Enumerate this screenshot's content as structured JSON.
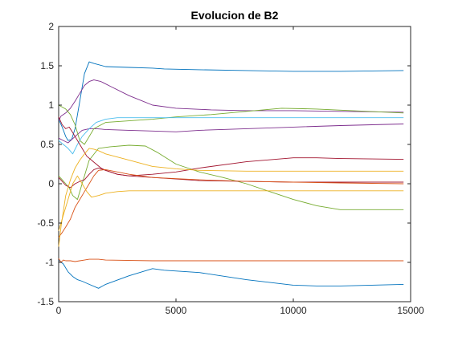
{
  "chart_data": {
    "type": "line",
    "title": "Evolucion de B2",
    "xlabel": "",
    "ylabel": "",
    "xlim": [
      0,
      15000
    ],
    "ylim": [
      -1.5,
      2
    ],
    "xticks": [
      0,
      5000,
      10000,
      15000
    ],
    "xtick_labels": [
      "0",
      "5000",
      "10000",
      "15000"
    ],
    "yticks": [
      -1.5,
      -1,
      -0.5,
      0,
      0.5,
      1,
      1.5,
      2
    ],
    "ytick_labels": [
      "-1.5",
      "-1",
      "-0.5",
      "0",
      "0.5",
      "1",
      "1.5",
      "2"
    ],
    "grid": false,
    "legend": "none",
    "series": [
      {
        "color": "#0072BD",
        "x": [
          0,
          150,
          300,
          400,
          550,
          700,
          900,
          1100,
          1300,
          1500,
          2000,
          3000,
          4000,
          4500,
          6000,
          8000,
          10000,
          12000,
          14700
        ],
        "y": [
          0.82,
          0.72,
          0.6,
          0.55,
          0.56,
          0.7,
          1.05,
          1.4,
          1.55,
          1.53,
          1.49,
          1.48,
          1.47,
          1.46,
          1.45,
          1.44,
          1.43,
          1.43,
          1.44
        ]
      },
      {
        "color": "#0072BD",
        "x": [
          0,
          200,
          400,
          600,
          800,
          1000,
          1300,
          1700,
          2000,
          3000,
          4000,
          4500,
          6000,
          8000,
          10000,
          11000,
          12000,
          14700
        ],
        "y": [
          -0.97,
          -1.02,
          -1.12,
          -1.18,
          -1.22,
          -1.24,
          -1.28,
          -1.33,
          -1.28,
          -1.17,
          -1.08,
          -1.1,
          -1.13,
          -1.22,
          -1.29,
          -1.3,
          -1.3,
          -1.28
        ]
      },
      {
        "color": "#7E2F8E",
        "x": [
          0,
          100,
          300,
          500,
          700,
          900,
          1100,
          1300,
          1500,
          1800,
          2200,
          3000,
          4000,
          5000,
          6500,
          8000,
          10000,
          12000,
          14700
        ],
        "y": [
          0.8,
          0.86,
          0.9,
          0.96,
          1.05,
          1.15,
          1.25,
          1.3,
          1.32,
          1.3,
          1.24,
          1.12,
          1.0,
          0.96,
          0.94,
          0.93,
          0.93,
          0.92,
          0.91
        ]
      },
      {
        "color": "#7E2F8E",
        "x": [
          0,
          200,
          400,
          700,
          1000,
          1300,
          1600,
          2000,
          3000,
          4000,
          5000,
          6000,
          8000,
          10000,
          12000,
          14700
        ],
        "y": [
          0.58,
          0.55,
          0.52,
          0.6,
          0.68,
          0.7,
          0.7,
          0.69,
          0.68,
          0.67,
          0.66,
          0.68,
          0.7,
          0.72,
          0.74,
          0.76
        ]
      },
      {
        "color": "#77AC30",
        "x": [
          0,
          300,
          500,
          700,
          900,
          1100,
          1300,
          1500,
          2000,
          3000,
          4000,
          5000,
          6500,
          8000,
          9500,
          11000,
          12500,
          14700
        ],
        "y": [
          1.0,
          0.95,
          0.88,
          0.75,
          0.55,
          0.5,
          0.6,
          0.7,
          0.78,
          0.8,
          0.82,
          0.85,
          0.88,
          0.92,
          0.96,
          0.95,
          0.93,
          0.9
        ]
      },
      {
        "color": "#77AC30",
        "x": [
          0,
          150,
          300,
          450,
          600,
          800,
          1000,
          1300,
          1700,
          2200,
          3000,
          3700,
          4200,
          5000,
          6000,
          7000,
          8000,
          9000,
          10000,
          11000,
          12000,
          13000,
          14700
        ],
        "y": [
          0.1,
          0.05,
          0.0,
          -0.05,
          -0.15,
          -0.2,
          0.0,
          0.3,
          0.45,
          0.47,
          0.49,
          0.48,
          0.4,
          0.25,
          0.15,
          0.08,
          0.0,
          -0.1,
          -0.2,
          -0.28,
          -0.33,
          -0.33,
          -0.33
        ]
      },
      {
        "color": "#4DBEEE",
        "x": [
          0,
          200,
          400,
          600,
          800,
          1000,
          1300,
          1600,
          2000,
          2500,
          3000,
          4000,
          6000,
          8000,
          10000,
          12000,
          14700
        ],
        "y": [
          0.55,
          0.5,
          0.45,
          0.38,
          0.5,
          0.6,
          0.7,
          0.78,
          0.82,
          0.84,
          0.84,
          0.84,
          0.84,
          0.84,
          0.84,
          0.84,
          0.84
        ]
      },
      {
        "color": "#A2142F",
        "x": [
          0,
          150,
          300,
          450,
          600,
          800,
          1000,
          1200,
          1400,
          1600,
          1800,
          2000,
          2500,
          3000,
          4000,
          5000,
          6000,
          8000,
          10000,
          11000,
          12000,
          14700
        ],
        "y": [
          0.85,
          0.75,
          0.7,
          0.72,
          0.65,
          0.55,
          0.45,
          0.35,
          0.3,
          0.25,
          0.2,
          0.17,
          0.12,
          0.1,
          0.12,
          0.15,
          0.2,
          0.28,
          0.33,
          0.33,
          0.32,
          0.31
        ]
      },
      {
        "color": "#A2142F",
        "x": [
          0,
          150,
          300,
          500,
          700,
          900,
          1100,
          1300,
          1500,
          1700,
          2000,
          2500,
          3000,
          4000,
          5000,
          6000,
          8000,
          10000,
          12000,
          14700
        ],
        "y": [
          0.08,
          0.03,
          -0.02,
          -0.05,
          0.0,
          0.03,
          0.05,
          0.12,
          0.18,
          0.2,
          0.17,
          0.12,
          0.1,
          0.08,
          0.06,
          0.04,
          0.03,
          0.02,
          0.02,
          0.02
        ]
      },
      {
        "color": "#D95319",
        "x": [
          0,
          100,
          200,
          300,
          500,
          700,
          900,
          1100,
          1300,
          1500,
          1700,
          2000,
          4000,
          6000,
          8000,
          10000,
          12000,
          14700
        ],
        "y": [
          -0.95,
          -1.0,
          -0.97,
          -0.98,
          -0.98,
          -0.99,
          -0.98,
          -0.97,
          -0.96,
          -0.96,
          -0.96,
          -0.97,
          -0.98,
          -0.98,
          -0.98,
          -0.98,
          -0.98,
          -0.98
        ]
      },
      {
        "color": "#D95319",
        "x": [
          0,
          150,
          300,
          500,
          700,
          900,
          1100,
          1300,
          1500,
          1700,
          2000,
          3000,
          4000,
          6000,
          8000,
          10000,
          12000,
          14700
        ],
        "y": [
          -0.68,
          -0.62,
          -0.55,
          -0.45,
          -0.3,
          -0.2,
          -0.1,
          0.0,
          0.1,
          0.17,
          0.18,
          0.12,
          0.08,
          0.05,
          0.03,
          0.02,
          0.01,
          0.0
        ]
      },
      {
        "color": "#EDB120",
        "x": [
          0,
          100,
          200,
          300,
          500,
          700,
          900,
          1100,
          1300,
          1500,
          1700,
          2000,
          3000,
          4000,
          5000,
          6000,
          8000,
          10000,
          12000,
          14700
        ],
        "y": [
          -0.8,
          -0.55,
          -0.35,
          -0.15,
          0.05,
          0.2,
          0.3,
          0.38,
          0.45,
          0.44,
          0.42,
          0.38,
          0.3,
          0.22,
          0.19,
          0.17,
          0.16,
          0.16,
          0.16,
          0.16
        ]
      },
      {
        "color": "#EDB120",
        "x": [
          0,
          200,
          400,
          600,
          800,
          1000,
          1200,
          1400,
          1700,
          2000,
          2500,
          3000,
          4000,
          6000,
          8000,
          10000,
          12000,
          14700
        ],
        "y": [
          -0.6,
          -0.4,
          -0.2,
          0.0,
          0.1,
          0.0,
          -0.1,
          -0.17,
          -0.15,
          -0.12,
          -0.1,
          -0.09,
          -0.09,
          -0.09,
          -0.09,
          -0.09,
          -0.09,
          -0.09
        ]
      }
    ]
  }
}
